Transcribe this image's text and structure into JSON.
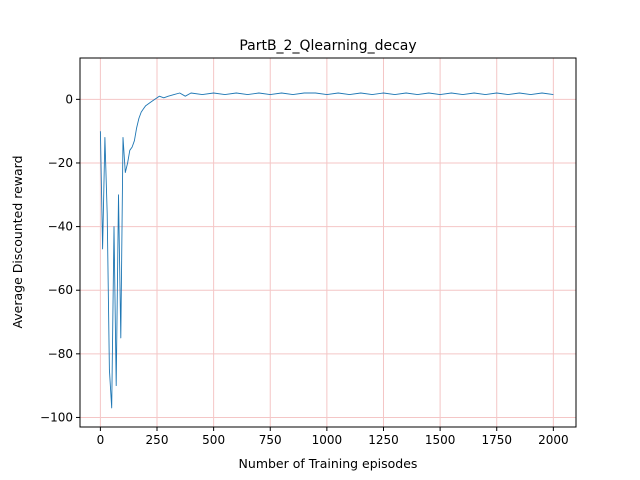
{
  "chart_data": {
    "type": "line",
    "title": "PartB_2_Qlearning_decay",
    "xlabel": "Number of Training episodes",
    "ylabel": "Average Discounted reward",
    "xlim": [
      -90,
      2100
    ],
    "ylim": [
      -103,
      13
    ],
    "xticks": [
      0,
      250,
      500,
      750,
      1000,
      1250,
      1500,
      1750,
      2000
    ],
    "yticks": [
      -100,
      -80,
      -60,
      -40,
      -20,
      0
    ],
    "grid": true,
    "grid_color": "#f4c6c6",
    "series": [
      {
        "color": "#1f77b4",
        "x": [
          0,
          10,
          20,
          30,
          40,
          50,
          60,
          70,
          80,
          90,
          100,
          110,
          120,
          130,
          140,
          150,
          160,
          170,
          180,
          190,
          200,
          220,
          240,
          260,
          280,
          300,
          325,
          350,
          375,
          400,
          450,
          500,
          550,
          600,
          650,
          700,
          750,
          800,
          850,
          900,
          950,
          1000,
          1050,
          1100,
          1150,
          1200,
          1250,
          1300,
          1350,
          1400,
          1450,
          1500,
          1550,
          1600,
          1650,
          1700,
          1750,
          1800,
          1850,
          1900,
          1950,
          2000
        ],
        "y": [
          -10,
          -47,
          -12,
          -36,
          -85,
          -97,
          -40,
          -90,
          -30,
          -75,
          -12,
          -23,
          -20,
          -16,
          -15,
          -13,
          -9,
          -6,
          -4,
          -3,
          -2,
          -1,
          0,
          1,
          0.5,
          1,
          1.5,
          2,
          1,
          2,
          1.5,
          2,
          1.5,
          2,
          1.5,
          2,
          1.5,
          2,
          1.5,
          2,
          2,
          1.5,
          2,
          1.5,
          2,
          1.5,
          2,
          1.5,
          2,
          1.5,
          2,
          1.5,
          2,
          1.5,
          2,
          1.5,
          2,
          1.5,
          2,
          1.5,
          2,
          1.5
        ]
      }
    ]
  }
}
